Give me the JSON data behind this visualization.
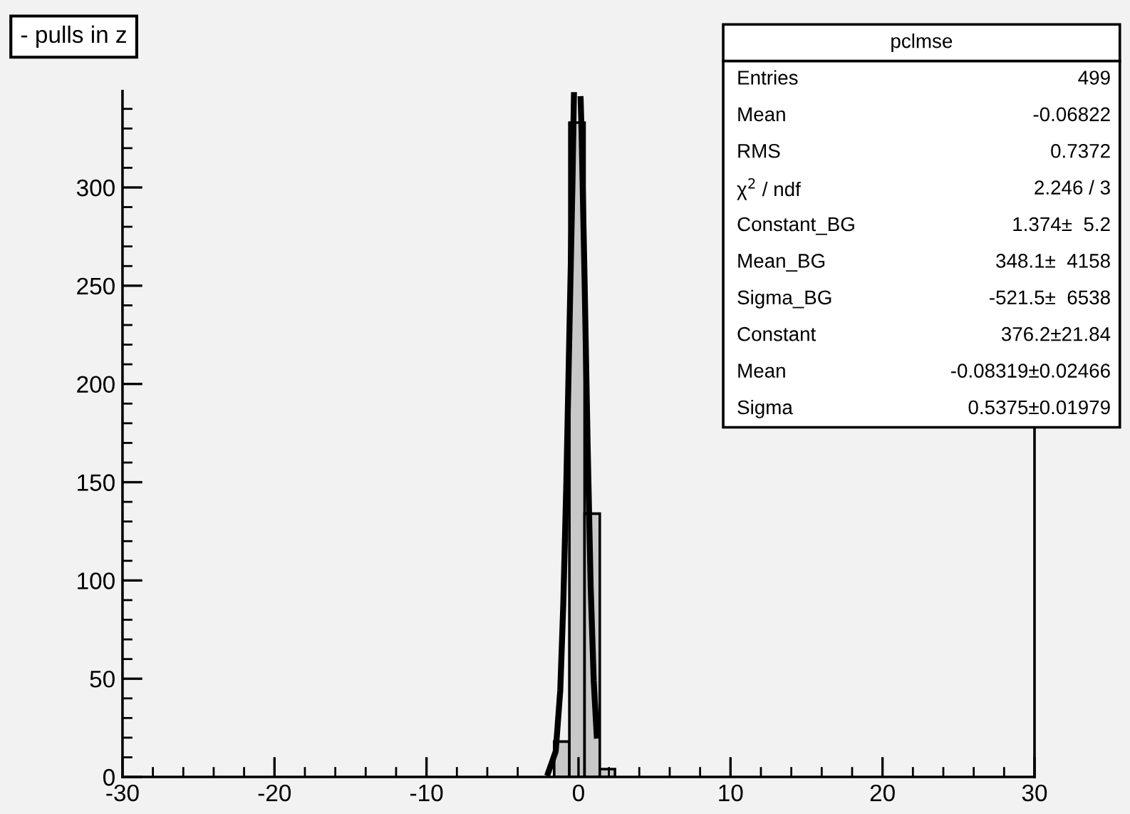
{
  "chart_data": {
    "type": "histogram",
    "title": "- pulls in z",
    "bins": [
      -1.6,
      -0.6,
      0.4,
      1.4,
      2.4
    ],
    "values": [
      18,
      333,
      134,
      4
    ],
    "color": "#c8c8c8",
    "series": [
      {
        "type": "line",
        "color": "#000000",
        "x": [
          -2.0,
          -1.5,
          -1.2,
          -1.0,
          -0.8,
          -0.6,
          -0.4,
          -0.3,
          -0.1,
          0.14,
          0.2,
          0.4,
          0.6,
          0.8,
          1.0,
          1.2
        ],
        "values": [
          2,
          13,
          44,
          88,
          150,
          226,
          301,
          347,
          null,
          345,
          329,
          253,
          169,
          97,
          49,
          21
        ]
      }
    ],
    "xlim": [
      -30,
      30
    ],
    "xticks": [
      -30,
      -20,
      -10,
      0,
      10,
      20,
      30
    ],
    "ylim": [
      0,
      349
    ],
    "yticks": [
      0,
      50,
      100,
      150,
      200,
      250,
      300
    ],
    "grid": false,
    "annotations": [
      "pclmse",
      "Entries",
      "499",
      "Mean",
      "-0.06822",
      "RMS",
      "0.7372",
      "χ$^{2}$ / ndf",
      "2.246 / 3",
      "Constant_BG",
      "1.374±  5.2",
      "Mean_BG",
      "348.1±  4158",
      "Sigma_BG",
      "-521.5±  6538",
      "Constant",
      "376.2±21.84",
      "Mean",
      "-0.08319±0.02466",
      "Sigma",
      "0.5375±0.01979"
    ]
  }
}
